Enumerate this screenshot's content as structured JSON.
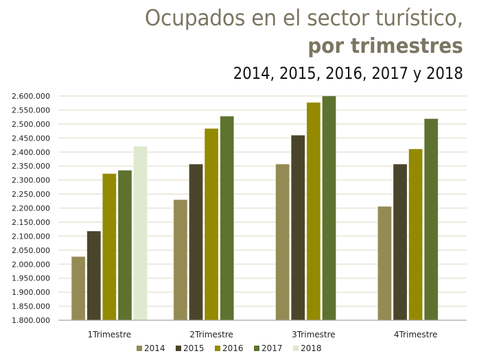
{
  "chart_data": {
    "type": "bar",
    "title": "Ocupados en el sector turístico,",
    "title_bold": "por trimestres",
    "subtitle": "2014, 2015, 2016, 2017 y 2018",
    "xlabel": "",
    "ylabel": "",
    "categories": [
      "1Trimestre",
      "2Trimestre",
      "3Trimestre",
      "4Trimestre"
    ],
    "ylim": [
      1800000,
      2600000
    ],
    "ytick_step": 50000,
    "yticks": [
      "1.800.000",
      "1.850.000",
      "1.900.000",
      "1.950.000",
      "2.000.000",
      "2.050.000",
      "2.100.000",
      "2.150.000",
      "2.200.000",
      "2.250.000",
      "2.300.000",
      "2.350.000",
      "2.400.000",
      "2.450.000",
      "2.500.000",
      "2.550.000",
      "2.600.000"
    ],
    "grid": true,
    "legend_position": "bottom",
    "series": [
      {
        "name": "2014",
        "color": "#948a54",
        "values": [
          2027000,
          2230000,
          2357000,
          2206000
        ]
      },
      {
        "name": "2015",
        "color": "#4a452a",
        "values": [
          2118000,
          2357000,
          2460000,
          2357000
        ]
      },
      {
        "name": "2016",
        "color": "#948a00",
        "values": [
          2323000,
          2484000,
          2577000,
          2411000
        ]
      },
      {
        "name": "2017",
        "color": "#5e7230",
        "values": [
          2335000,
          2528000,
          2600000,
          2519000
        ]
      },
      {
        "name": "2018",
        "color": "#dfe9cf",
        "values": [
          2421000,
          null,
          null,
          null
        ]
      }
    ]
  }
}
